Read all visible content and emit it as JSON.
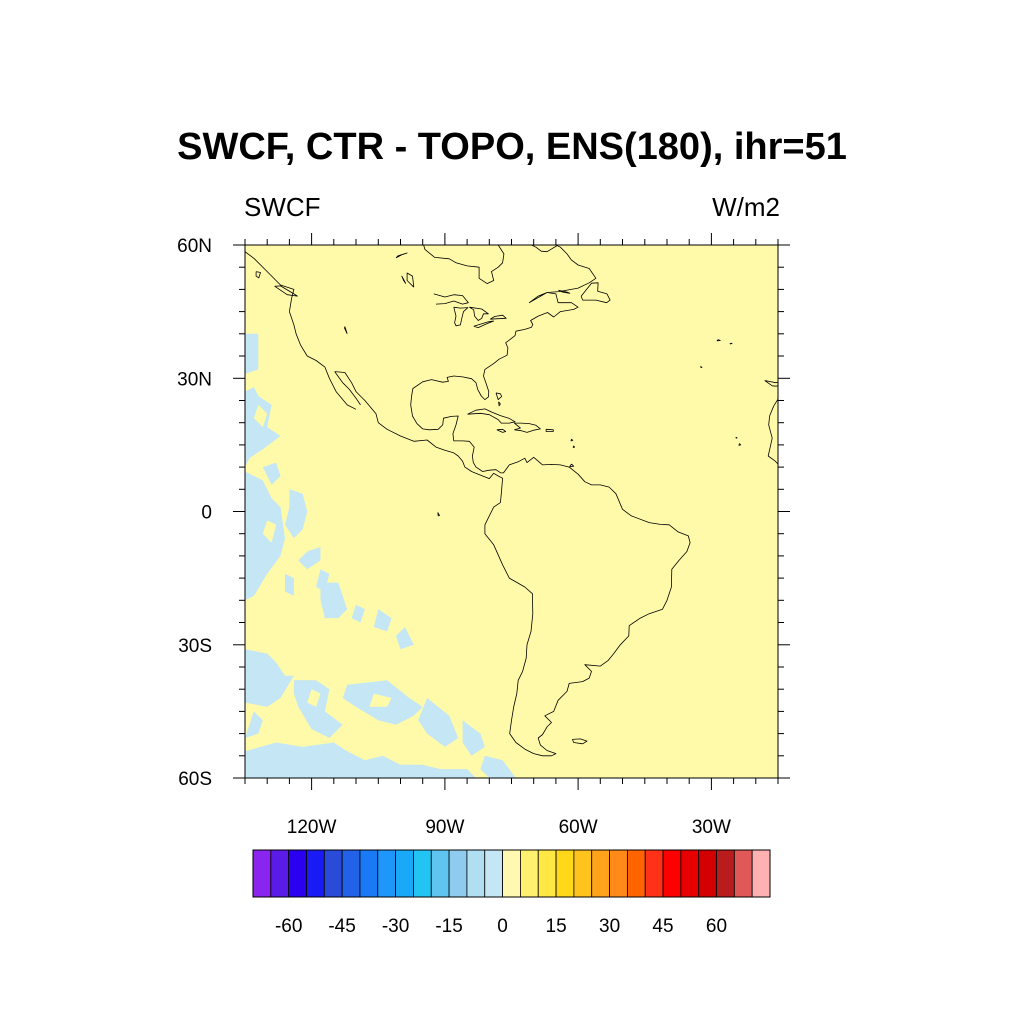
{
  "title": "SWCF, CTR - TOPO, ENS(180), ihr=51",
  "left_string": "SWCF",
  "right_string": "W/m2",
  "map": {
    "projection": "cylindrical equidistant",
    "lon_range": [
      -135,
      -15
    ],
    "lat_range": [
      -60,
      60
    ],
    "lon_ticks": [
      {
        "value": -120,
        "label": "120W"
      },
      {
        "value": -90,
        "label": "90W"
      },
      {
        "value": -60,
        "label": "60W"
      },
      {
        "value": -30,
        "label": "30W"
      }
    ],
    "lat_ticks": [
      {
        "value": 60,
        "label": "60N"
      },
      {
        "value": 30,
        "label": "30N"
      },
      {
        "value": 0,
        "label": "0"
      },
      {
        "value": -30,
        "label": "30S"
      },
      {
        "value": -60,
        "label": "60S"
      }
    ],
    "background_fill_color": "#fffaaa",
    "negative_patch_color": "#c4e6f5",
    "coastline_color": "#000000"
  },
  "colorbar": {
    "labels": [
      {
        "value": -60,
        "label": "-60"
      },
      {
        "value": -45,
        "label": "-45"
      },
      {
        "value": -30,
        "label": "-30"
      },
      {
        "value": -15,
        "label": "-15"
      },
      {
        "value": 0,
        "label": "0"
      },
      {
        "value": 15,
        "label": "15"
      },
      {
        "value": 30,
        "label": "30"
      },
      {
        "value": 45,
        "label": "45"
      },
      {
        "value": 60,
        "label": "60"
      }
    ],
    "levels": [
      -70,
      -65,
      -60,
      -55,
      -50,
      -45,
      -40,
      -35,
      -30,
      -25,
      -20,
      -15,
      -10,
      -5,
      0,
      5,
      10,
      15,
      20,
      25,
      30,
      35,
      40,
      45,
      50,
      55,
      60,
      65,
      70
    ],
    "colors": [
      "#8a24ef",
      "#5a1ae8",
      "#2a00f0",
      "#1a1af5",
      "#2a4ad8",
      "#2262e8",
      "#1a7af5",
      "#1e96fa",
      "#1aa8f8",
      "#22c4f4",
      "#60c4f0",
      "#8ecbee",
      "#b0dff2",
      "#c4e6f5",
      "#fff8b0",
      "#fff070",
      "#ffe844",
      "#ffd81a",
      "#ffc31e",
      "#ffa41a",
      "#ff8a1a",
      "#ff6400",
      "#ff3218",
      "#ff0000",
      "#e80000",
      "#d20000",
      "#b81c1c",
      "#e05858",
      "#ffb0b0"
    ]
  }
}
